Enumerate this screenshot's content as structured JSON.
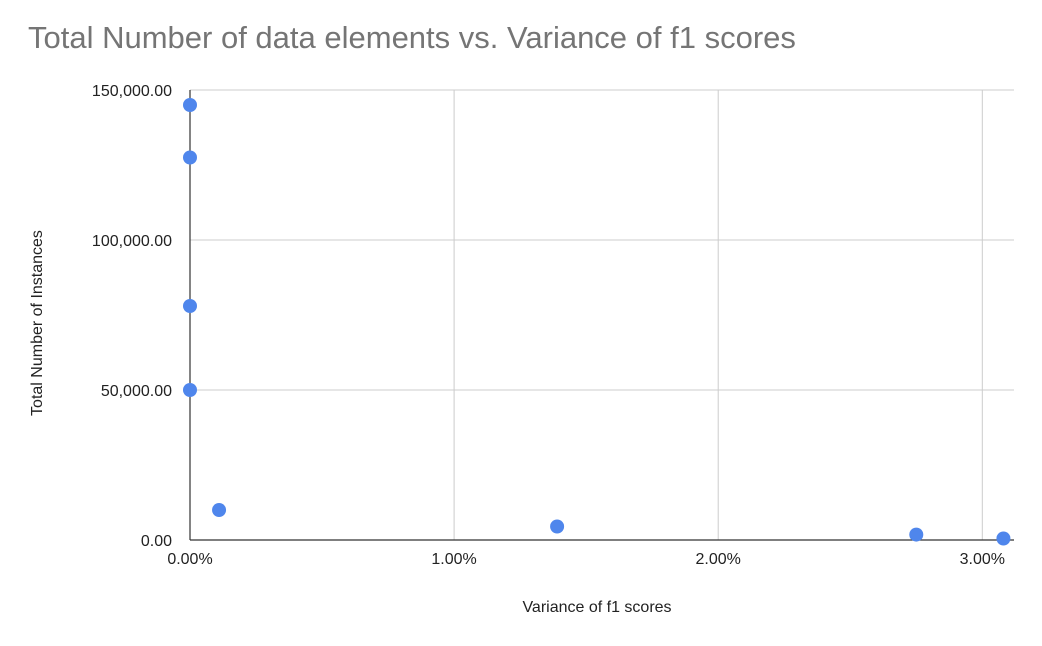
{
  "chart_data": {
    "type": "scatter",
    "title": "Total Number of data elements vs. Variance of f1 scores",
    "xlabel": "Variance of f1 scores",
    "ylabel": "Total Number of Instances",
    "xlim": [
      0,
      3.12
    ],
    "ylim": [
      0,
      150000
    ],
    "x_ticks": [
      {
        "value": 0,
        "label": "0.00%"
      },
      {
        "value": 1,
        "label": "1.00%"
      },
      {
        "value": 2,
        "label": "2.00%"
      },
      {
        "value": 3,
        "label": "3.00%"
      }
    ],
    "y_ticks": [
      {
        "value": 0,
        "label": "0.00"
      },
      {
        "value": 50000,
        "label": "50,000.00"
      },
      {
        "value": 100000,
        "label": "100,000.00"
      },
      {
        "value": 150000,
        "label": "150,000.00"
      }
    ],
    "grid": true,
    "legend": "none",
    "point_color": "#4f86ec",
    "points": [
      {
        "x": 0.0,
        "y": 145000
      },
      {
        "x": 0.0,
        "y": 127500
      },
      {
        "x": 0.0,
        "y": 78000
      },
      {
        "x": 0.0,
        "y": 50000
      },
      {
        "x": 0.11,
        "y": 10000
      },
      {
        "x": 1.39,
        "y": 4500
      },
      {
        "x": 2.75,
        "y": 1800
      },
      {
        "x": 3.08,
        "y": 500
      }
    ]
  }
}
